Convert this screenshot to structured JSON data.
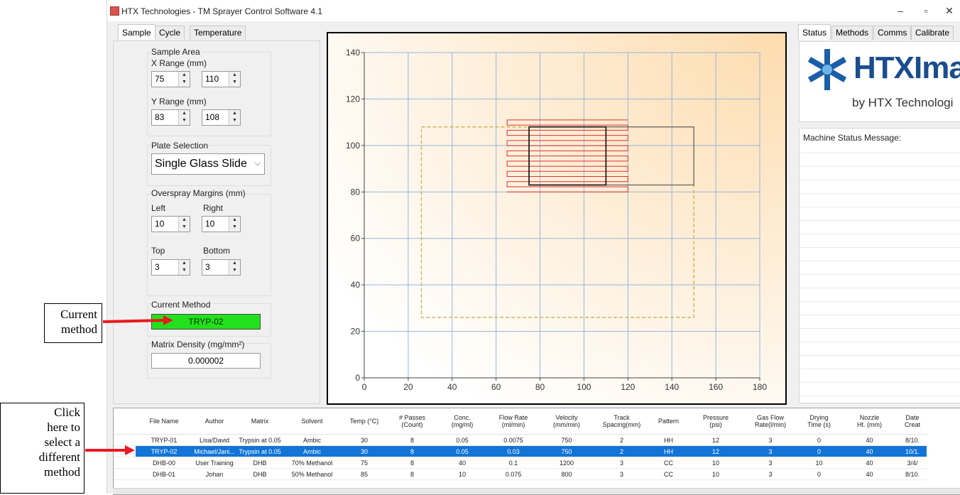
{
  "window": {
    "title": "HTX Technologies - TM Sprayer Control Software 4.1",
    "controls": {
      "minimize": "–",
      "maximize": "▫",
      "close": "✕"
    }
  },
  "left_tabs": [
    "Sample",
    "Cycle",
    "Temperature"
  ],
  "right_tabs": [
    "Status",
    "Methods",
    "Comms",
    "Calibrate"
  ],
  "sample_area": {
    "title": "Sample Area",
    "x_label": "X Range (mm)",
    "x_min": "75",
    "x_max": "110",
    "y_label": "Y Range (mm)",
    "y_min": "83",
    "y_max": "108"
  },
  "plate": {
    "title": "Plate Selection",
    "value": "Single Glass Slide"
  },
  "overspray": {
    "title": "Overspray Margins (mm)",
    "left_label": "Left",
    "left": "10",
    "right_label": "Right",
    "right": "10",
    "top_label": "Top",
    "top": "3",
    "bottom_label": "Bottom",
    "bottom": "3"
  },
  "current_method": {
    "title": "Current Method",
    "value": "TRYP-02"
  },
  "matrix_density": {
    "title": "Matrix Density (mg/mm²)",
    "value": "0.000002"
  },
  "status_panel": {
    "logo_main": "HTXImag",
    "logo_sub": "by HTX Technologi",
    "message_label": "Machine Status Message:"
  },
  "chart_data": {
    "type": "scatter",
    "xlim": [
      0,
      180
    ],
    "ylim": [
      0,
      140
    ],
    "xticks": [
      0,
      20,
      40,
      60,
      80,
      100,
      120,
      140,
      160,
      180
    ],
    "yticks": [
      0,
      20,
      40,
      60,
      80,
      100,
      120,
      140
    ],
    "grid": true,
    "overlays": {
      "plate_outline": {
        "x": [
          26,
          150
        ],
        "y": [
          26,
          108
        ]
      },
      "spray_passes": {
        "x": [
          65,
          120
        ],
        "y_start": 80,
        "y_end": 111,
        "count": 15
      },
      "sample_region": {
        "x": [
          75,
          110
        ],
        "y": [
          83,
          108
        ]
      },
      "margin_region": {
        "x": [
          75,
          150
        ],
        "y": [
          83,
          108
        ]
      }
    }
  },
  "methods_table": {
    "columns": [
      "File Name",
      "Author",
      "Matrix",
      "Solvent",
      "Temp (°C)",
      "# Passes\n(Count)",
      "Conc.\n(mg/ml)",
      "Flow Rate\n(ml/min)",
      "Velocity\n(mm/min)",
      "Track\nSpacing(mm)",
      "Pattern",
      "Pressure\n(psi)",
      "Gas Flow\nRate(l/min)",
      "Drying\nTime (s)",
      "Nozzle\nHt. (mm)",
      "Date\nCreat"
    ],
    "rows": [
      [
        "TRYP-01",
        "Lisa/David",
        "Trypsin at 0.05",
        "Ambic",
        "30",
        "8",
        "0.05",
        "0.0075",
        "750",
        "2",
        "HH",
        "12",
        "3",
        "0",
        "40",
        "8/10."
      ],
      [
        "TRYP-02",
        "Michael/Jani...",
        "Trypsin at 0.05",
        "Ambic",
        "30",
        "8",
        "0.05",
        "0.03",
        "750",
        "2",
        "HH",
        "12",
        "3",
        "0",
        "40",
        "10/1."
      ],
      [
        "DHB-00",
        "User Training",
        "DHB",
        "70% Methanol",
        "75",
        "8",
        "40",
        "0.1",
        "1200",
        "3",
        "CC",
        "10",
        "3",
        "10",
        "40",
        "3/4/"
      ],
      [
        "DHB-01",
        "Johan",
        "DHB",
        "50% Methanol",
        "85",
        "8",
        "10",
        "0.075",
        "800",
        "3",
        "CC",
        "10",
        "3",
        "0",
        "40",
        "8/10."
      ]
    ],
    "selected_row": 1
  },
  "annotations": {
    "current_method": [
      "Current",
      "method"
    ],
    "select_method": [
      "Click",
      "here to",
      "select a",
      "different",
      "method"
    ]
  },
  "colors": {
    "method_green": "#22e11c",
    "selection_blue": "#1174d6",
    "pass_red": "#e0302f",
    "arrow_red": "#e8191f"
  }
}
